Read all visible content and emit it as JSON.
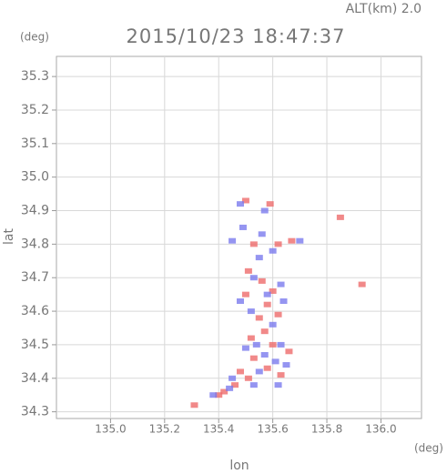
{
  "chart_data": {
    "type": "scatter",
    "title": "2015/10/23 18:47:37",
    "subtitle": "ALT(km) 2.0",
    "x_label": "lon",
    "y_label": "lat",
    "x_unit": "(deg)",
    "y_unit": "(deg)",
    "xlim": [
      134.8,
      136.15
    ],
    "ylim": [
      34.28,
      35.36
    ],
    "xticks": [
      {
        "value": 135,
        "label": "135.0"
      },
      135.2,
      135.4,
      135.6,
      135.8,
      {
        "value": 136,
        "label": "136.0"
      }
    ],
    "yticks": [
      34.3,
      34.4,
      34.5,
      34.6,
      34.7,
      34.8,
      34.9,
      {
        "value": 35,
        "label": "35.0"
      },
      35.1,
      35.2,
      35.3
    ],
    "grid": true,
    "series": [
      {
        "color": "#ee6b6b",
        "x": [
          135.5,
          135.59,
          135.85,
          135.53,
          135.62,
          135.67,
          135.93,
          135.51,
          135.56,
          135.6,
          135.5,
          135.58,
          135.55,
          135.62,
          135.57,
          135.52,
          135.6,
          135.66,
          135.53,
          135.58,
          135.63,
          135.48,
          135.51,
          135.46,
          135.31,
          135.42,
          135.4
        ],
        "values": [
          34.93,
          34.92,
          34.88,
          34.8,
          34.8,
          34.81,
          34.68,
          34.72,
          34.69,
          34.66,
          34.65,
          34.62,
          34.58,
          34.59,
          34.54,
          34.52,
          34.5,
          34.48,
          34.46,
          34.43,
          34.41,
          34.42,
          34.4,
          34.38,
          34.32,
          34.36,
          34.35
        ]
      },
      {
        "color": "#7a7aee",
        "x": [
          135.48,
          135.57,
          135.49,
          135.56,
          135.6,
          135.7,
          135.45,
          135.55,
          135.53,
          135.63,
          135.58,
          135.48,
          135.64,
          135.52,
          135.6,
          135.54,
          135.63,
          135.5,
          135.57,
          135.61,
          135.55,
          135.65,
          135.45,
          135.53,
          135.38,
          135.44,
          135.62
        ],
        "values": [
          34.92,
          34.9,
          34.85,
          34.83,
          34.78,
          34.81,
          34.81,
          34.76,
          34.7,
          34.68,
          34.65,
          34.63,
          34.63,
          34.6,
          34.56,
          34.5,
          34.5,
          34.49,
          34.47,
          34.45,
          34.42,
          34.44,
          34.4,
          34.38,
          34.35,
          34.37,
          34.38
        ]
      }
    ]
  }
}
